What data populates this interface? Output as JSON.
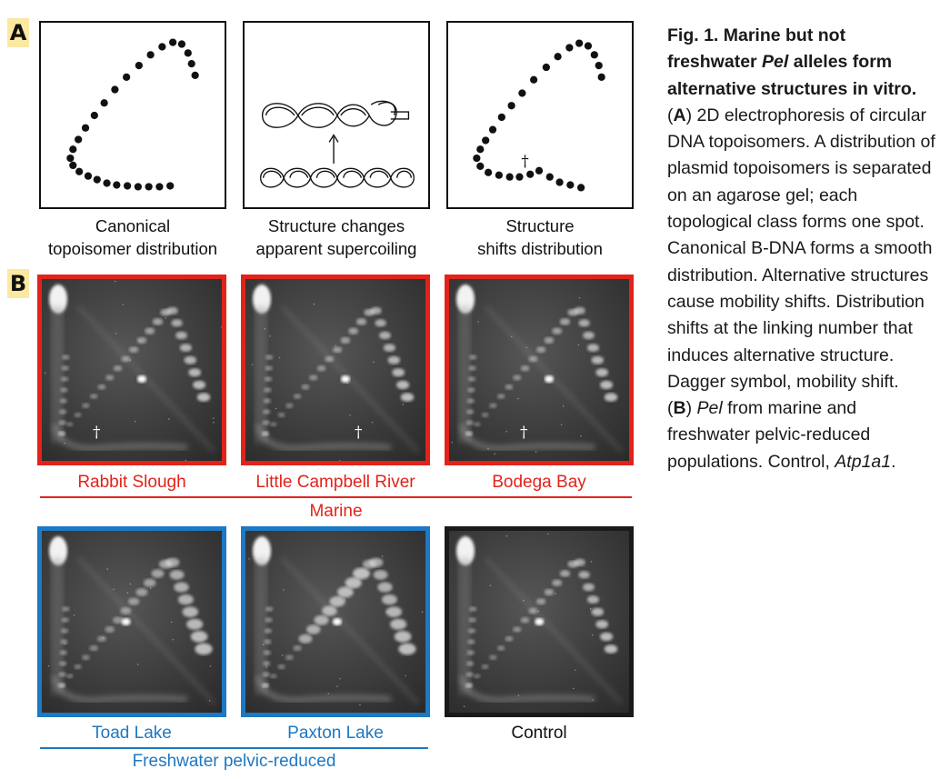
{
  "panel_a": {
    "letter": "A",
    "captions": [
      {
        "line1": "Canonical",
        "line2": "topoisomer distribution"
      },
      {
        "line1": "Structure changes",
        "line2": "apparent supercoiling"
      },
      {
        "line1": "Structure",
        "line2": "shifts distribution"
      }
    ],
    "dagger": "†"
  },
  "panel_b": {
    "letter": "B",
    "marine": {
      "label": "Marine",
      "gels": [
        "Rabbit Slough",
        "Little Campbell River",
        "Bodega Bay"
      ],
      "dagger": "†"
    },
    "freshwater": {
      "label": "Freshwater pelvic-reduced",
      "gels": [
        "Toad Lake",
        "Paxton Lake"
      ]
    },
    "control": {
      "label": "Control"
    }
  },
  "colors": {
    "marine": "#e2231a",
    "freshwater": "#1e78c2",
    "control": "#1a1a1a",
    "letter_bg": "#fbe9a1"
  },
  "figure_text": {
    "title": "Fig. 1. Marine but not freshwater Pel alleles form alternative structures in vitro.",
    "title_parts": {
      "pre": "Fig. 1. Marine but not freshwater ",
      "italic": "Pel",
      "post": " alleles form alternative structures in vitro."
    },
    "a_ref": "A",
    "a_text": "2D electrophoresis of circular DNA topoisomers. A distribution of plasmid topoisomers is separated on an agarose gel; each topological class forms one spot. Canonical B-DNA forms a smooth distribution. Alternative structures cause mobility shifts. Distribution shifts at the linking number that induces alternative structure. Dagger symbol, mobility shift.",
    "b_ref": "B",
    "b_text_pel": "Pel",
    "b_text_mid": "from marine and freshwater pelvic-reduced populations. Control,",
    "b_text_gene": "Atp1a1",
    "b_text_end": "."
  }
}
